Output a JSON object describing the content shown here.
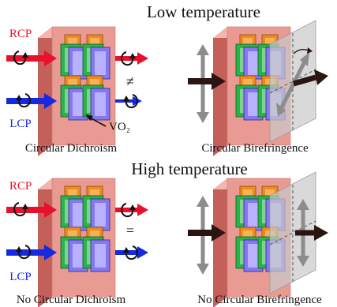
{
  "sections": [
    {
      "title": "Low temperature",
      "left": {
        "caption": "Circular Dichroism",
        "relation": "≠",
        "material_label": "VO₂"
      },
      "right": {
        "caption": "Circular Birefringence"
      }
    },
    {
      "title": "High temperature",
      "left": {
        "caption": "No Circular Dichroism",
        "relation": "="
      },
      "right": {
        "caption": "No Circular Birefringence"
      }
    }
  ],
  "polarization": {
    "rcp_label": "RCP",
    "lcp_label": "LCP"
  },
  "colors": {
    "rcp": "#e8112d",
    "lcp": "#1628e0",
    "substrate": "#e99a93",
    "block_orange": "#ee8b1f",
    "block_green": "#2ab34b",
    "block_purple": "#8478f0",
    "arrow_dark": "#2a1512",
    "arrow_grey": "#8c8c8c",
    "plane": "#c9c9c9"
  },
  "icons": [
    "rotation-arrow-icon",
    "polarization-arrow-icon",
    "metasurface-icon",
    "analyzer-plane-icon"
  ]
}
